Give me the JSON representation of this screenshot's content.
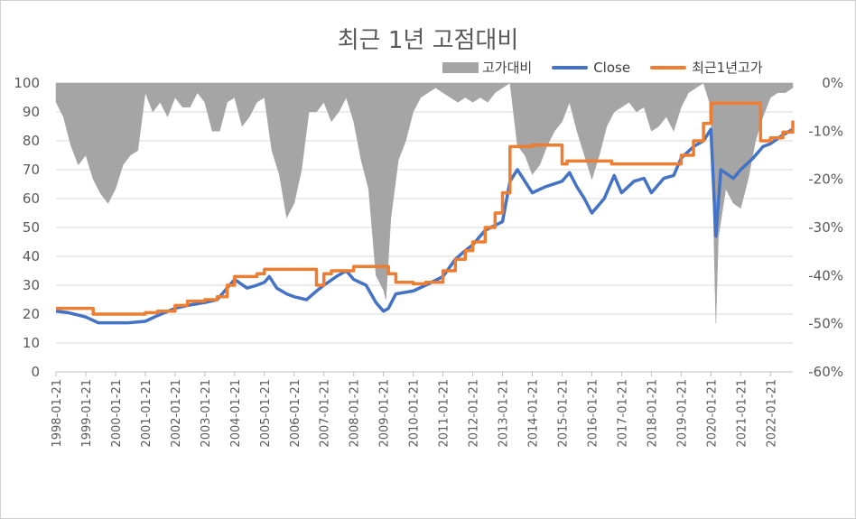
{
  "chart_data": {
    "type": "line",
    "title": "최근 1년 고점대비",
    "legend": {
      "position": "top-right"
    },
    "y_left": {
      "range": [
        0,
        100
      ],
      "ticks": [
        "0",
        "10",
        "20",
        "30",
        "40",
        "50",
        "60",
        "70",
        "80",
        "90",
        "100"
      ]
    },
    "y_right": {
      "range": [
        -0.6,
        0
      ],
      "ticks": [
        "0%",
        "-10%",
        "-20%",
        "-30%",
        "-40%",
        "-50%",
        "-60%"
      ]
    },
    "x_range": [
      "1998-01-21",
      "2022-10-21"
    ],
    "x_ticks": [
      "1998-01-21",
      "1999-01-21",
      "2000-01-21",
      "2001-01-21",
      "2002-01-21",
      "2003-01-21",
      "2004-01-21",
      "2005-01-21",
      "2006-01-21",
      "2007-01-21",
      "2008-01-21",
      "2009-01-21",
      "2010-01-21",
      "2011-01-21",
      "2012-01-21",
      "2013-01-21",
      "2014-01-21",
      "2015-01-21",
      "2016-01-21",
      "2017-01-21",
      "2018-01-21",
      "2019-01-21",
      "2020-01-21",
      "2021-01-21",
      "2022-01-21"
    ],
    "series": [
      {
        "name": "고가대비",
        "kind": "area",
        "axis": "right",
        "color": "#a5a5a5",
        "points": [
          [
            "1998-01-21",
            -0.04
          ],
          [
            "1998-04-21",
            -0.07
          ],
          [
            "1998-07-21",
            -0.13
          ],
          [
            "1998-10-21",
            -0.17
          ],
          [
            "1999-01-21",
            -0.15
          ],
          [
            "1999-04-21",
            -0.2
          ],
          [
            "1999-07-21",
            -0.23
          ],
          [
            "1999-10-21",
            -0.25
          ],
          [
            "2000-01-21",
            -0.22
          ],
          [
            "2000-04-21",
            -0.17
          ],
          [
            "2000-07-21",
            -0.15
          ],
          [
            "2000-10-21",
            -0.14
          ],
          [
            "2001-01-21",
            -0.02
          ],
          [
            "2001-04-21",
            -0.06
          ],
          [
            "2001-07-21",
            -0.04
          ],
          [
            "2001-10-21",
            -0.07
          ],
          [
            "2002-01-21",
            -0.03
          ],
          [
            "2002-04-21",
            -0.05
          ],
          [
            "2002-07-21",
            -0.05
          ],
          [
            "2002-10-21",
            -0.02
          ],
          [
            "2003-01-21",
            -0.04
          ],
          [
            "2003-04-21",
            -0.1
          ],
          [
            "2003-07-21",
            -0.1
          ],
          [
            "2003-10-21",
            -0.04
          ],
          [
            "2004-01-21",
            -0.03
          ],
          [
            "2004-04-21",
            -0.09
          ],
          [
            "2004-07-21",
            -0.07
          ],
          [
            "2004-10-21",
            -0.04
          ],
          [
            "2005-01-21",
            -0.03
          ],
          [
            "2005-04-21",
            -0.14
          ],
          [
            "2005-07-21",
            -0.19
          ],
          [
            "2005-10-21",
            -0.28
          ],
          [
            "2006-01-21",
            -0.25
          ],
          [
            "2006-04-21",
            -0.18
          ],
          [
            "2006-07-21",
            -0.06
          ],
          [
            "2006-10-21",
            -0.06
          ],
          [
            "2007-01-21",
            -0.04
          ],
          [
            "2007-04-21",
            -0.08
          ],
          [
            "2007-07-21",
            -0.06
          ],
          [
            "2007-10-21",
            -0.03
          ],
          [
            "2008-01-21",
            -0.08
          ],
          [
            "2008-04-21",
            -0.16
          ],
          [
            "2008-07-21",
            -0.22
          ],
          [
            "2008-10-21",
            -0.4
          ],
          [
            "2009-01-21",
            -0.43
          ],
          [
            "2009-02-21",
            -0.45
          ],
          [
            "2009-04-21",
            -0.28
          ],
          [
            "2009-07-21",
            -0.16
          ],
          [
            "2009-10-21",
            -0.12
          ],
          [
            "2010-01-21",
            -0.06
          ],
          [
            "2010-04-21",
            -0.03
          ],
          [
            "2010-07-21",
            -0.02
          ],
          [
            "2010-10-21",
            -0.01
          ],
          [
            "2011-01-21",
            -0.02
          ],
          [
            "2011-04-21",
            -0.03
          ],
          [
            "2011-07-21",
            -0.04
          ],
          [
            "2011-10-21",
            -0.03
          ],
          [
            "2012-01-21",
            -0.04
          ],
          [
            "2012-04-21",
            -0.03
          ],
          [
            "2012-07-21",
            -0.04
          ],
          [
            "2012-10-21",
            -0.02
          ],
          [
            "2013-01-21",
            -0.01
          ],
          [
            "2013-04-21",
            0
          ],
          [
            "2013-07-21",
            -0.13
          ],
          [
            "2013-10-21",
            -0.15
          ],
          [
            "2014-01-21",
            -0.19
          ],
          [
            "2014-04-21",
            -0.17
          ],
          [
            "2014-07-21",
            -0.13
          ],
          [
            "2014-10-21",
            -0.1
          ],
          [
            "2015-01-21",
            -0.08
          ],
          [
            "2015-04-21",
            -0.04
          ],
          [
            "2015-07-21",
            -0.1
          ],
          [
            "2015-10-21",
            -0.15
          ],
          [
            "2016-01-21",
            -0.2
          ],
          [
            "2016-04-21",
            -0.15
          ],
          [
            "2016-07-21",
            -0.09
          ],
          [
            "2016-10-21",
            -0.06
          ],
          [
            "2017-01-21",
            -0.05
          ],
          [
            "2017-04-21",
            -0.04
          ],
          [
            "2017-07-21",
            -0.06
          ],
          [
            "2017-10-21",
            -0.05
          ],
          [
            "2018-01-21",
            -0.1
          ],
          [
            "2018-04-21",
            -0.09
          ],
          [
            "2018-07-21",
            -0.07
          ],
          [
            "2018-10-21",
            -0.1
          ],
          [
            "2019-01-21",
            -0.05
          ],
          [
            "2019-04-21",
            -0.02
          ],
          [
            "2019-07-21",
            -0.01
          ],
          [
            "2019-10-21",
            0
          ],
          [
            "2020-01-21",
            -0.05
          ],
          [
            "2020-03-21",
            -0.5
          ],
          [
            "2020-04-21",
            -0.32
          ],
          [
            "2020-07-21",
            -0.22
          ],
          [
            "2020-10-21",
            -0.25
          ],
          [
            "2021-01-21",
            -0.26
          ],
          [
            "2021-04-21",
            -0.2
          ],
          [
            "2021-07-21",
            -0.12
          ],
          [
            "2021-10-21",
            -0.07
          ],
          [
            "2022-01-21",
            -0.03
          ],
          [
            "2022-04-21",
            -0.02
          ],
          [
            "2022-07-21",
            -0.02
          ],
          [
            "2022-10-21",
            -0.01
          ]
        ]
      },
      {
        "name": "Close",
        "kind": "line",
        "axis": "left",
        "color": "#4472c4",
        "points": [
          [
            "1998-01-21",
            21
          ],
          [
            "1998-06-21",
            20.5
          ],
          [
            "1999-01-21",
            19
          ],
          [
            "1999-06-21",
            17
          ],
          [
            "2000-01-21",
            17
          ],
          [
            "2000-06-21",
            17
          ],
          [
            "2001-01-21",
            17.5
          ],
          [
            "2001-06-21",
            19.5
          ],
          [
            "2002-01-21",
            22
          ],
          [
            "2002-06-21",
            23
          ],
          [
            "2003-01-21",
            24
          ],
          [
            "2003-06-21",
            25
          ],
          [
            "2003-09-21",
            28
          ],
          [
            "2004-01-21",
            32
          ],
          [
            "2004-06-21",
            29
          ],
          [
            "2004-10-21",
            30
          ],
          [
            "2005-01-21",
            31
          ],
          [
            "2005-03-21",
            33
          ],
          [
            "2005-06-21",
            29
          ],
          [
            "2005-10-21",
            27
          ],
          [
            "2006-01-21",
            26
          ],
          [
            "2006-06-21",
            25
          ],
          [
            "2006-10-21",
            28
          ],
          [
            "2007-01-21",
            30
          ],
          [
            "2007-06-21",
            33
          ],
          [
            "2007-10-21",
            35
          ],
          [
            "2008-01-21",
            32
          ],
          [
            "2008-06-21",
            30
          ],
          [
            "2008-10-21",
            24
          ],
          [
            "2009-01-21",
            21
          ],
          [
            "2009-03-21",
            22
          ],
          [
            "2009-06-21",
            27
          ],
          [
            "2010-01-21",
            28
          ],
          [
            "2010-06-21",
            30
          ],
          [
            "2011-01-21",
            33
          ],
          [
            "2011-06-21",
            39
          ],
          [
            "2011-10-21",
            42
          ],
          [
            "2012-01-21",
            44
          ],
          [
            "2012-06-21",
            49
          ],
          [
            "2013-01-21",
            52
          ],
          [
            "2013-04-21",
            66
          ],
          [
            "2013-07-21",
            70
          ],
          [
            "2014-01-21",
            62
          ],
          [
            "2014-06-21",
            64
          ],
          [
            "2015-01-21",
            66
          ],
          [
            "2015-04-21",
            69
          ],
          [
            "2015-07-21",
            64
          ],
          [
            "2015-10-21",
            60
          ],
          [
            "2016-01-21",
            55
          ],
          [
            "2016-06-21",
            60
          ],
          [
            "2016-10-21",
            68
          ],
          [
            "2017-01-21",
            62
          ],
          [
            "2017-06-21",
            66
          ],
          [
            "2017-10-21",
            67
          ],
          [
            "2018-01-21",
            62
          ],
          [
            "2018-06-21",
            67
          ],
          [
            "2018-10-21",
            68
          ],
          [
            "2019-01-21",
            74
          ],
          [
            "2019-06-21",
            78
          ],
          [
            "2019-10-21",
            80
          ],
          [
            "2020-01-21",
            84
          ],
          [
            "2020-03-21",
            47
          ],
          [
            "2020-05-21",
            70
          ],
          [
            "2020-10-21",
            67
          ],
          [
            "2021-01-21",
            70
          ],
          [
            "2021-06-21",
            74
          ],
          [
            "2021-10-21",
            78
          ],
          [
            "2022-01-21",
            79
          ],
          [
            "2022-06-21",
            82
          ],
          [
            "2022-10-21",
            84
          ]
        ]
      },
      {
        "name": "최근1년고가",
        "kind": "step",
        "axis": "left",
        "color": "#ed7d31",
        "points": [
          [
            "1998-01-21",
            22
          ],
          [
            "1999-01-21",
            22
          ],
          [
            "1999-04-21",
            20
          ],
          [
            "2000-07-21",
            20
          ],
          [
            "2001-01-21",
            20.5
          ],
          [
            "2001-06-21",
            21
          ],
          [
            "2002-01-21",
            23
          ],
          [
            "2002-06-21",
            24.5
          ],
          [
            "2003-01-21",
            25
          ],
          [
            "2003-06-21",
            26
          ],
          [
            "2003-10-21",
            30
          ],
          [
            "2004-01-21",
            33
          ],
          [
            "2004-10-21",
            34
          ],
          [
            "2005-01-21",
            35.5
          ],
          [
            "2006-03-21",
            35.5
          ],
          [
            "2006-06-21",
            35.5
          ],
          [
            "2006-10-21",
            30
          ],
          [
            "2007-01-21",
            34
          ],
          [
            "2007-04-21",
            35
          ],
          [
            "2008-01-21",
            36.5
          ],
          [
            "2009-01-21",
            36.5
          ],
          [
            "2009-03-21",
            34
          ],
          [
            "2009-06-21",
            31
          ],
          [
            "2010-01-21",
            30.5
          ],
          [
            "2010-06-21",
            31
          ],
          [
            "2011-01-21",
            35
          ],
          [
            "2011-06-21",
            39
          ],
          [
            "2011-10-21",
            42
          ],
          [
            "2012-01-21",
            45
          ],
          [
            "2012-06-21",
            50
          ],
          [
            "2012-10-21",
            55
          ],
          [
            "2013-01-21",
            62
          ],
          [
            "2013-04-21",
            78
          ],
          [
            "2014-01-21",
            78.5
          ],
          [
            "2014-08-21",
            78.5
          ],
          [
            "2015-01-21",
            72
          ],
          [
            "2015-03-21",
            73
          ],
          [
            "2016-01-21",
            73
          ],
          [
            "2016-09-21",
            72
          ],
          [
            "2018-01-21",
            72
          ],
          [
            "2018-09-21",
            72
          ],
          [
            "2019-01-21",
            75
          ],
          [
            "2019-06-21",
            80
          ],
          [
            "2019-10-21",
            86
          ],
          [
            "2020-01-21",
            93
          ],
          [
            "2021-06-21",
            93
          ],
          [
            "2021-09-21",
            80
          ],
          [
            "2022-01-21",
            81
          ],
          [
            "2022-06-21",
            83
          ],
          [
            "2022-10-21",
            87
          ]
        ]
      }
    ]
  }
}
